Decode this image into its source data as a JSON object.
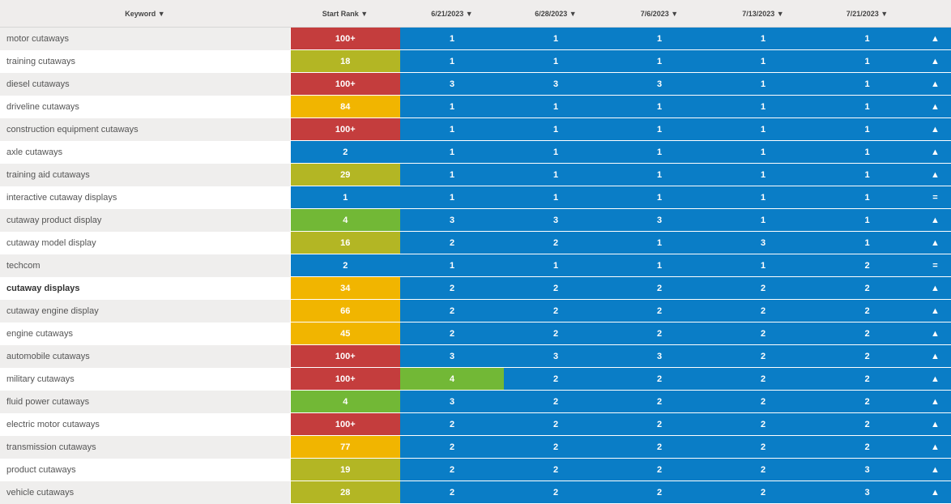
{
  "header": {
    "keyword": "Keyword ▼",
    "start_rank": "Start Rank ▼",
    "dates": [
      "6/21/2023 ▼",
      "6/28/2023 ▼",
      "7/6/2023 ▼",
      "7/13/2023 ▼",
      "7/21/2023 ▼"
    ]
  },
  "colors": {
    "red": "#c43d3d",
    "olive": "#b3b624",
    "orange": "#f1b500",
    "green": "#72b836",
    "blue": "#0a7dc6"
  },
  "rows": [
    {
      "keyword": "motor cutaways",
      "start": "100+",
      "start_level": "red",
      "ranks": [
        "1",
        "1",
        "1",
        "1",
        "1"
      ],
      "rank_levels": [
        "blue",
        "blue",
        "blue",
        "blue",
        "blue"
      ],
      "trend": "▲"
    },
    {
      "keyword": "training cutaways",
      "start": "18",
      "start_level": "olive",
      "ranks": [
        "1",
        "1",
        "1",
        "1",
        "1"
      ],
      "rank_levels": [
        "blue",
        "blue",
        "blue",
        "blue",
        "blue"
      ],
      "trend": "▲"
    },
    {
      "keyword": "diesel cutaways",
      "start": "100+",
      "start_level": "red",
      "ranks": [
        "3",
        "3",
        "3",
        "1",
        "1"
      ],
      "rank_levels": [
        "blue",
        "blue",
        "blue",
        "blue",
        "blue"
      ],
      "trend": "▲"
    },
    {
      "keyword": "driveline cutaways",
      "start": "84",
      "start_level": "orange",
      "ranks": [
        "1",
        "1",
        "1",
        "1",
        "1"
      ],
      "rank_levels": [
        "blue",
        "blue",
        "blue",
        "blue",
        "blue"
      ],
      "trend": "▲"
    },
    {
      "keyword": "construction equipment cutaways",
      "start": "100+",
      "start_level": "red",
      "ranks": [
        "1",
        "1",
        "1",
        "1",
        "1"
      ],
      "rank_levels": [
        "blue",
        "blue",
        "blue",
        "blue",
        "blue"
      ],
      "trend": "▲"
    },
    {
      "keyword": "axle cutaways",
      "start": "2",
      "start_level": "blue",
      "ranks": [
        "1",
        "1",
        "1",
        "1",
        "1"
      ],
      "rank_levels": [
        "blue",
        "blue",
        "blue",
        "blue",
        "blue"
      ],
      "trend": "▲"
    },
    {
      "keyword": "training aid cutaways",
      "start": "29",
      "start_level": "olive",
      "ranks": [
        "1",
        "1",
        "1",
        "1",
        "1"
      ],
      "rank_levels": [
        "blue",
        "blue",
        "blue",
        "blue",
        "blue"
      ],
      "trend": "▲"
    },
    {
      "keyword": "interactive cutaway displays",
      "start": "1",
      "start_level": "blue",
      "ranks": [
        "1",
        "1",
        "1",
        "1",
        "1"
      ],
      "rank_levels": [
        "blue",
        "blue",
        "blue",
        "blue",
        "blue"
      ],
      "trend": "="
    },
    {
      "keyword": "cutaway product display",
      "start": "4",
      "start_level": "green",
      "ranks": [
        "3",
        "3",
        "3",
        "1",
        "1"
      ],
      "rank_levels": [
        "blue",
        "blue",
        "blue",
        "blue",
        "blue"
      ],
      "trend": "▲"
    },
    {
      "keyword": "cutaway model display",
      "start": "16",
      "start_level": "olive",
      "ranks": [
        "2",
        "2",
        "1",
        "3",
        "1"
      ],
      "rank_levels": [
        "blue",
        "blue",
        "blue",
        "blue",
        "blue"
      ],
      "trend": "▲"
    },
    {
      "keyword": "techcom",
      "start": "2",
      "start_level": "blue",
      "ranks": [
        "1",
        "1",
        "1",
        "1",
        "2"
      ],
      "rank_levels": [
        "blue",
        "blue",
        "blue",
        "blue",
        "blue"
      ],
      "trend": "="
    },
    {
      "keyword": "cutaway displays",
      "bold": true,
      "start": "34",
      "start_level": "orange",
      "ranks": [
        "2",
        "2",
        "2",
        "2",
        "2"
      ],
      "rank_levels": [
        "blue",
        "blue",
        "blue",
        "blue",
        "blue"
      ],
      "trend": "▲"
    },
    {
      "keyword": "cutaway engine display",
      "start": "66",
      "start_level": "orange",
      "ranks": [
        "2",
        "2",
        "2",
        "2",
        "2"
      ],
      "rank_levels": [
        "blue",
        "blue",
        "blue",
        "blue",
        "blue"
      ],
      "trend": "▲"
    },
    {
      "keyword": "engine cutaways",
      "start": "45",
      "start_level": "orange",
      "ranks": [
        "2",
        "2",
        "2",
        "2",
        "2"
      ],
      "rank_levels": [
        "blue",
        "blue",
        "blue",
        "blue",
        "blue"
      ],
      "trend": "▲"
    },
    {
      "keyword": "automobile cutaways",
      "start": "100+",
      "start_level": "red",
      "ranks": [
        "3",
        "3",
        "3",
        "2",
        "2"
      ],
      "rank_levels": [
        "blue",
        "blue",
        "blue",
        "blue",
        "blue"
      ],
      "trend": "▲"
    },
    {
      "keyword": "military cutaways",
      "start": "100+",
      "start_level": "red",
      "ranks": [
        "4",
        "2",
        "2",
        "2",
        "2"
      ],
      "rank_levels": [
        "green",
        "blue",
        "blue",
        "blue",
        "blue"
      ],
      "trend": "▲"
    },
    {
      "keyword": "fluid power cutaways",
      "start": "4",
      "start_level": "green",
      "ranks": [
        "3",
        "2",
        "2",
        "2",
        "2"
      ],
      "rank_levels": [
        "blue",
        "blue",
        "blue",
        "blue",
        "blue"
      ],
      "trend": "▲"
    },
    {
      "keyword": "electric motor cutaways",
      "start": "100+",
      "start_level": "red",
      "ranks": [
        "2",
        "2",
        "2",
        "2",
        "2"
      ],
      "rank_levels": [
        "blue",
        "blue",
        "blue",
        "blue",
        "blue"
      ],
      "trend": "▲"
    },
    {
      "keyword": "transmission cutaways",
      "start": "77",
      "start_level": "orange",
      "ranks": [
        "2",
        "2",
        "2",
        "2",
        "2"
      ],
      "rank_levels": [
        "blue",
        "blue",
        "blue",
        "blue",
        "blue"
      ],
      "trend": "▲"
    },
    {
      "keyword": "product cutaways",
      "start": "19",
      "start_level": "olive",
      "ranks": [
        "2",
        "2",
        "2",
        "2",
        "3"
      ],
      "rank_levels": [
        "blue",
        "blue",
        "blue",
        "blue",
        "blue"
      ],
      "trend": "▲"
    },
    {
      "keyword": "vehicle cutaways",
      "start": "28",
      "start_level": "olive",
      "ranks": [
        "2",
        "2",
        "2",
        "2",
        "3"
      ],
      "rank_levels": [
        "blue",
        "blue",
        "blue",
        "blue",
        "blue"
      ],
      "trend": "▲"
    }
  ]
}
